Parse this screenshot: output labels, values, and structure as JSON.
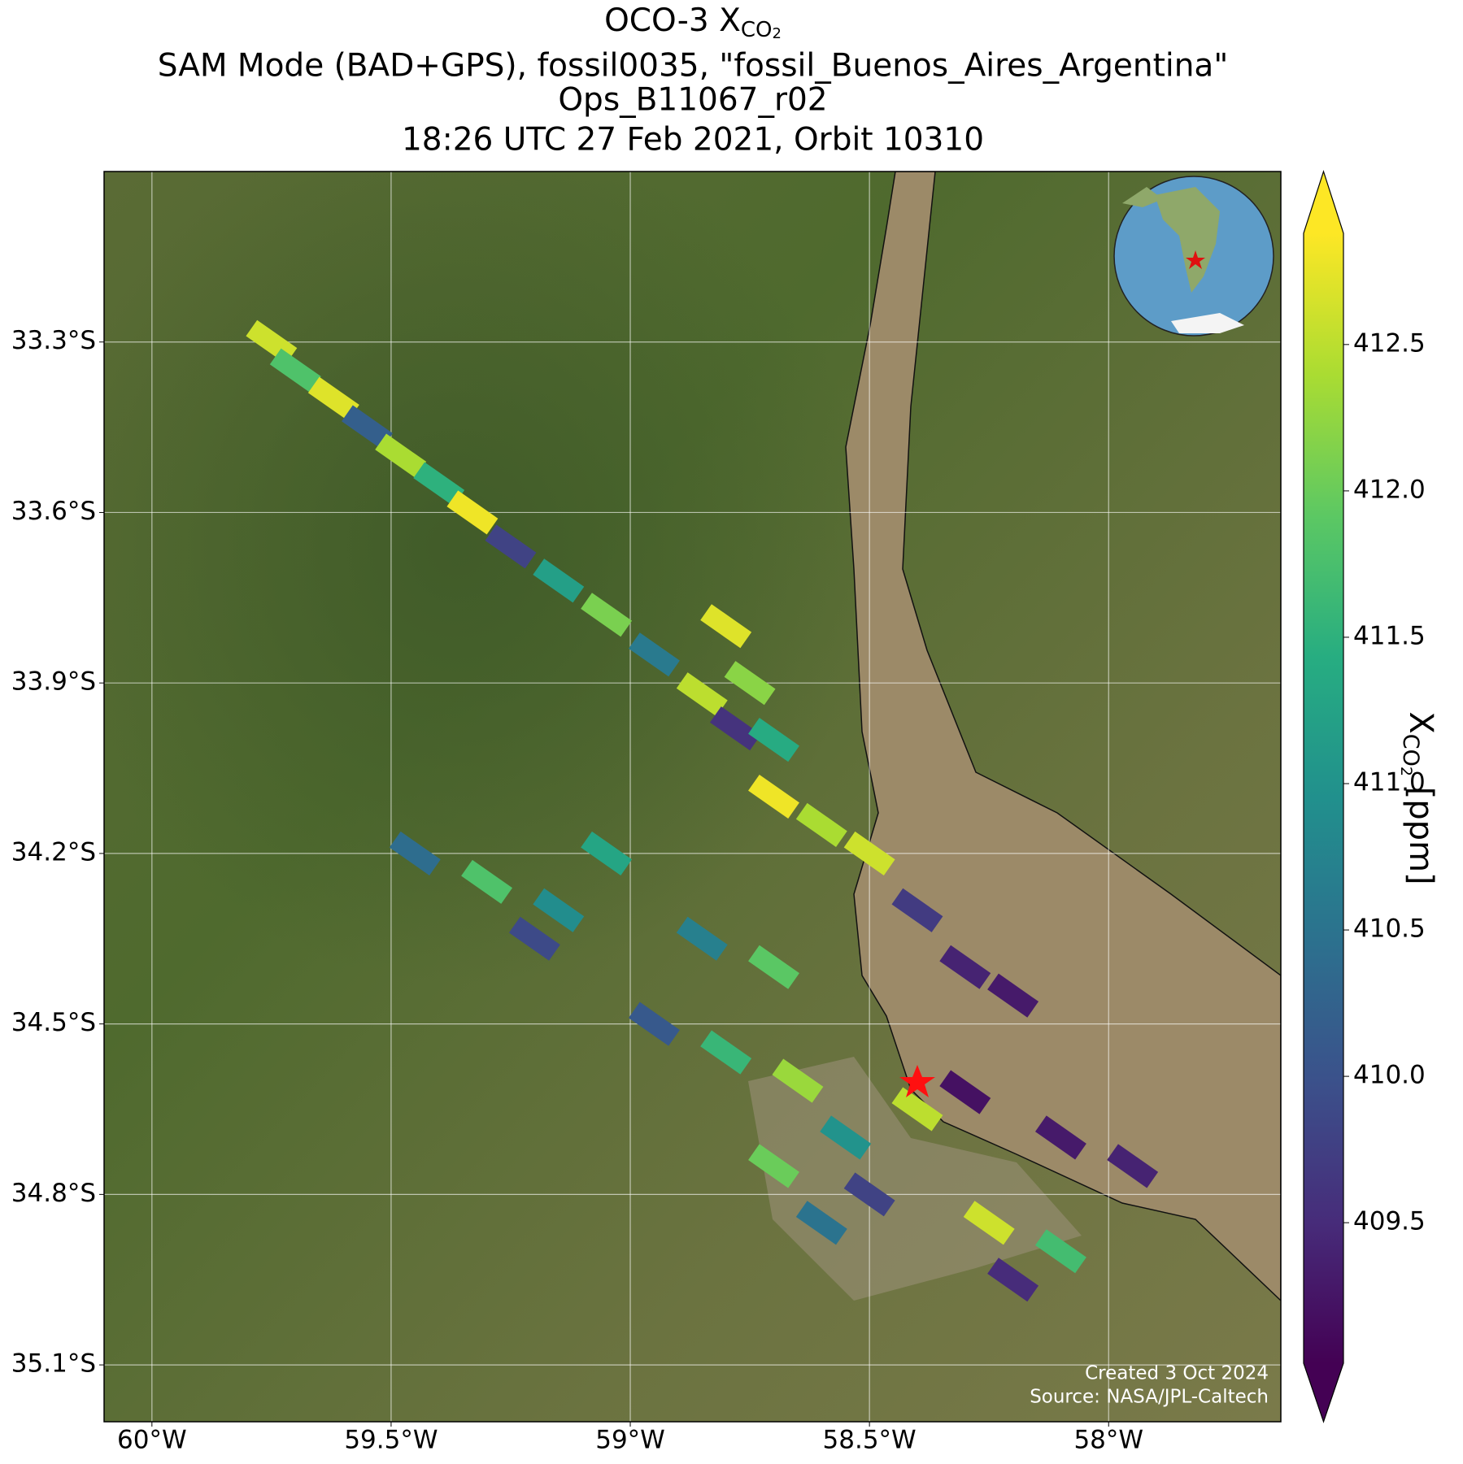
{
  "chart_data": {
    "type": "map",
    "title_lines": [
      "SAM Mode (BAD+GPS), fossil0035, \"fossil_Buenos_Aires_Argentina\"",
      "Ops_B11067_r02",
      "18:26 UTC 27 Feb 2021, Orbit 10310"
    ],
    "title_main": "OCO-3 X",
    "title_sub": "CO",
    "title_sub_index": "2",
    "xlim": [
      -60.1,
      -57.64
    ],
    "ylim": [
      -35.2,
      -33.0
    ],
    "xticks": [
      {
        "value": -60,
        "label": "60°W"
      },
      {
        "value": -59.5,
        "label": "59.5°W"
      },
      {
        "value": -59,
        "label": "59°W"
      },
      {
        "value": -58.5,
        "label": "58.5°W"
      },
      {
        "value": -58,
        "label": "58°W"
      }
    ],
    "yticks": [
      {
        "value": -33.3,
        "label": "33.3°S"
      },
      {
        "value": -33.6,
        "label": "33.6°S"
      },
      {
        "value": -33.9,
        "label": "33.9°S"
      },
      {
        "value": -34.2,
        "label": "34.2°S"
      },
      {
        "value": -34.5,
        "label": "34.5°S"
      },
      {
        "value": -34.8,
        "label": "34.8°S"
      },
      {
        "value": -35.1,
        "label": "35.1°S"
      }
    ],
    "grid": true,
    "colormap": "viridis",
    "clim": [
      409.02,
      412.88
    ],
    "cticks": [
      {
        "value": 409.5,
        "label": "409.5"
      },
      {
        "value": 410,
        "label": "410.0"
      },
      {
        "value": 410.5,
        "label": "410.5"
      },
      {
        "value": 411,
        "label": "411.0"
      },
      {
        "value": 411.5,
        "label": "411.5"
      },
      {
        "value": 412,
        "label": "412.0"
      },
      {
        "value": 412.5,
        "label": "412.5"
      }
    ],
    "colorbar_label_main": "X",
    "colorbar_label_sub": "CO",
    "colorbar_label_sub_index": "2",
    "colorbar_label_unit": " [ppm]",
    "credits": [
      "Created 3 Oct 2024",
      "Source: NASA/JPL-Caltech"
    ],
    "soundings": {
      "lon": [
        -59.75,
        -59.7,
        -59.62,
        -59.55,
        -59.48,
        -59.4,
        -59.33,
        -59.25,
        -59.15,
        -59.05,
        -58.95,
        -58.85,
        -58.78,
        -58.8,
        -58.75,
        -58.7,
        -58.7,
        -58.6,
        -58.5,
        -58.4,
        -58.3,
        -58.2,
        -59.45,
        -59.3,
        -59.15,
        -59.05,
        -59.2,
        -58.85,
        -58.7,
        -58.95,
        -58.8,
        -58.65,
        -58.55,
        -58.7,
        -58.5,
        -58.4,
        -58.6,
        -58.25,
        -58.1,
        -58.2,
        -58.1,
        -57.95,
        -58.3
      ],
      "lat": [
        -33.3,
        -33.35,
        -33.4,
        -33.45,
        -33.5,
        -33.55,
        -33.6,
        -33.66,
        -33.72,
        -33.78,
        -33.85,
        -33.92,
        -33.98,
        -33.8,
        -33.9,
        -34.0,
        -34.1,
        -34.15,
        -34.2,
        -34.3,
        -34.4,
        -34.45,
        -34.2,
        -34.25,
        -34.3,
        -34.2,
        -34.35,
        -34.35,
        -34.4,
        -34.5,
        -34.55,
        -34.6,
        -34.7,
        -34.75,
        -34.8,
        -34.65,
        -34.85,
        -34.85,
        -34.9,
        -34.95,
        -34.7,
        -34.75,
        -34.62
      ],
      "xco2": [
        412.6,
        411.8,
        412.7,
        410.2,
        412.4,
        411.5,
        412.8,
        409.8,
        411.2,
        412.1,
        410.6,
        412.5,
        409.6,
        412.7,
        412.2,
        411.4,
        412.8,
        412.4,
        412.6,
        409.7,
        409.4,
        409.3,
        410.4,
        411.8,
        410.9,
        411.3,
        409.9,
        410.7,
        411.9,
        410.1,
        411.6,
        412.3,
        411.0,
        412.0,
        409.8,
        412.5,
        410.5,
        412.6,
        411.7,
        409.5,
        409.3,
        409.4,
        409.2
      ]
    }
  }
}
